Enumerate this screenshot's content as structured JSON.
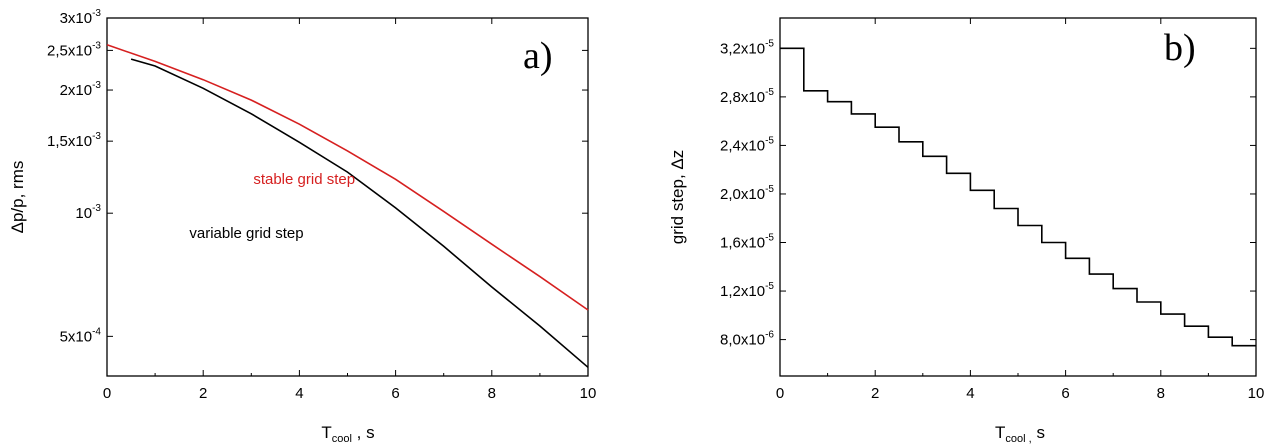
{
  "chart_data": [
    {
      "type": "line",
      "panel_label": "a)",
      "xlabel": "T_cool , s",
      "ylabel": "Δp/p, rms",
      "xlim": [
        0,
        10
      ],
      "ylim": [
        0.0004,
        0.003
      ],
      "yscale": "log",
      "x_ticks": [
        0,
        2,
        4,
        6,
        8,
        10
      ],
      "y_ticks": [
        {
          "value": 0.0005,
          "label": "5x10⁻⁴"
        },
        {
          "value": 0.001,
          "label": "10⁻³"
        },
        {
          "value": 0.0015,
          "label": "1,5x10⁻³"
        },
        {
          "value": 0.002,
          "label": "2x10⁻³"
        },
        {
          "value": 0.0025,
          "label": "2,5x10⁻³"
        },
        {
          "value": 0.003,
          "label": "3x10⁻³"
        }
      ],
      "series": [
        {
          "name": "stable grid step",
          "color": "#d62020",
          "x": [
            0,
            1,
            2,
            3,
            4,
            5,
            6,
            7,
            8,
            9,
            10
          ],
          "y": [
            0.00258,
            0.00235,
            0.00212,
            0.00189,
            0.00165,
            0.00142,
            0.00121,
            0.00101,
            0.00084,
            0.0007,
            0.00058
          ]
        },
        {
          "name": "variable grid step",
          "color": "#000000",
          "x": [
            0.5,
            1,
            2,
            3,
            4,
            5,
            6,
            7,
            8,
            9,
            10
          ],
          "y": [
            0.00238,
            0.00229,
            0.00202,
            0.00175,
            0.00149,
            0.00126,
            0.00103,
            0.00083,
            0.00066,
            0.00053,
            0.00042
          ]
        }
      ],
      "annotations": [
        {
          "text": "stable grid step",
          "color": "#d62020",
          "x": 4.1,
          "y": 0.00118
        },
        {
          "text": "variable grid step",
          "color": "#000000",
          "x": 2.9,
          "y": 0.00087
        }
      ]
    },
    {
      "type": "line",
      "panel_label": "b)",
      "xlabel": "T_cool , s",
      "ylabel": "grid step, Δz",
      "xlim": [
        0,
        10
      ],
      "ylim": [
        5e-06,
        3.45e-05
      ],
      "yscale": "linear",
      "x_ticks": [
        0,
        2,
        4,
        6,
        8,
        10
      ],
      "y_ticks": [
        {
          "value": 8e-06,
          "label": "8,0x10⁻⁶"
        },
        {
          "value": 1.2e-05,
          "label": "1,2x10⁻⁵"
        },
        {
          "value": 1.6e-05,
          "label": "1,6x10⁻⁵"
        },
        {
          "value": 2e-05,
          "label": "2,0x10⁻⁵"
        },
        {
          "value": 2.4e-05,
          "label": "2,4x10⁻⁵"
        },
        {
          "value": 2.8e-05,
          "label": "2,8x10⁻⁵"
        },
        {
          "value": 3.2e-05,
          "label": "3,2x10⁻⁵"
        }
      ],
      "series": [
        {
          "step": true,
          "color": "#000000",
          "x": [
            0,
            0.5,
            1,
            1.5,
            2,
            2.5,
            3,
            3.5,
            4,
            4.5,
            5,
            5.5,
            6,
            6.5,
            7,
            7.5,
            8,
            8.5,
            9,
            9.5,
            10
          ],
          "y": [
            3.2e-05,
            2.85e-05,
            2.76e-05,
            2.66e-05,
            2.55e-05,
            2.43e-05,
            2.31e-05,
            2.17e-05,
            2.03e-05,
            1.88e-05,
            1.74e-05,
            1.6e-05,
            1.47e-05,
            1.34e-05,
            1.22e-05,
            1.11e-05,
            1.01e-05,
            9.1e-06,
            8.2e-06,
            7.5e-06,
            7.5e-06
          ]
        }
      ]
    }
  ]
}
